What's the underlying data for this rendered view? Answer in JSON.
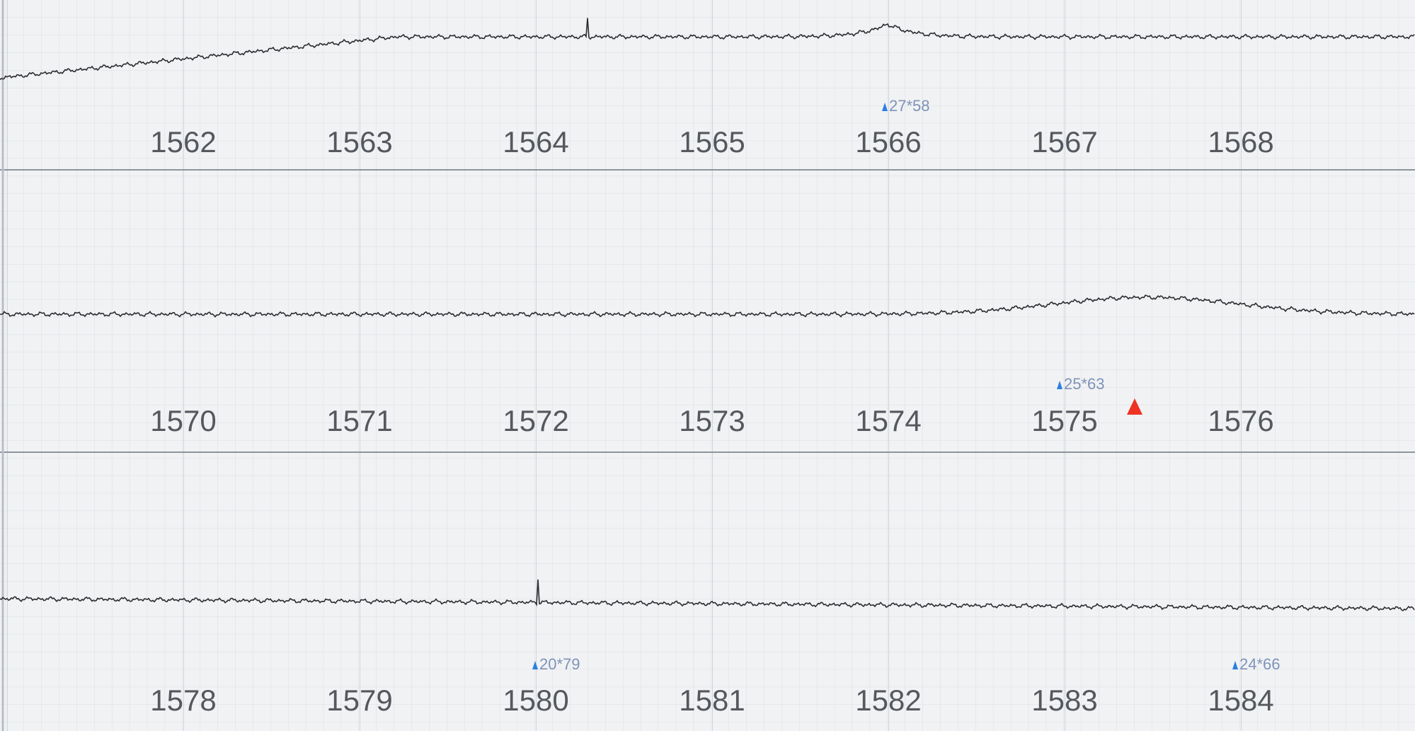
{
  "strips": [
    {
      "labels": [
        "1562",
        "1563",
        "1564",
        "1565",
        "1566",
        "1567",
        "1568"
      ],
      "markers": [
        {
          "text": "27*58"
        }
      ]
    },
    {
      "labels": [
        "1570",
        "1571",
        "1572",
        "1573",
        "1574",
        "1575",
        "1576"
      ],
      "markers": [
        {
          "text": "25*63"
        }
      ]
    },
    {
      "labels": [
        "1578",
        "1579",
        "1580",
        "1581",
        "1582",
        "1583",
        "1584"
      ],
      "markers": [
        {
          "text": "20*79"
        },
        {
          "text": "24*66"
        }
      ]
    }
  ]
}
